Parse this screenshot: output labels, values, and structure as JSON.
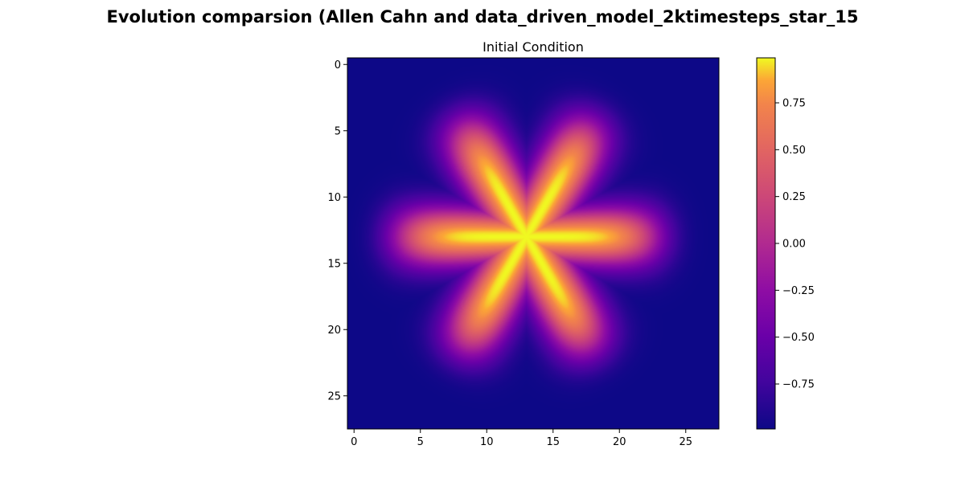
{
  "figure": {
    "suptitle": "Evolution comparsion (Allen Cahn and data_driven_model_2ktimesteps_star_15"
  },
  "chart_data": {
    "type": "heatmap",
    "title": "Initial Condition",
    "colormap": "plasma",
    "grid": false,
    "shape": [
      28,
      28
    ],
    "xlim": [
      -0.5,
      27.5
    ],
    "ylim": [
      27.5,
      -0.5
    ],
    "x_ticks": [
      0,
      5,
      10,
      15,
      20,
      25
    ],
    "y_ticks": [
      0,
      5,
      10,
      15,
      20,
      25
    ],
    "pattern": {
      "description_type": "six-armed star",
      "center": [
        13,
        13
      ],
      "arm_angles_deg": [
        0,
        60,
        120
      ],
      "arm_length": 10,
      "arm_width_sigma": 1.3,
      "background_value": -0.99,
      "peak_value": 0.99
    },
    "colorbar": {
      "vmin": -0.99,
      "vmax": 0.99,
      "ticks": [
        -0.75,
        -0.5,
        -0.25,
        0.0,
        0.25,
        0.5,
        0.75
      ],
      "tick_labels": [
        "−0.75",
        "−0.50",
        "−0.25",
        "0.00",
        "0.25",
        "0.50",
        "0.75"
      ]
    }
  }
}
